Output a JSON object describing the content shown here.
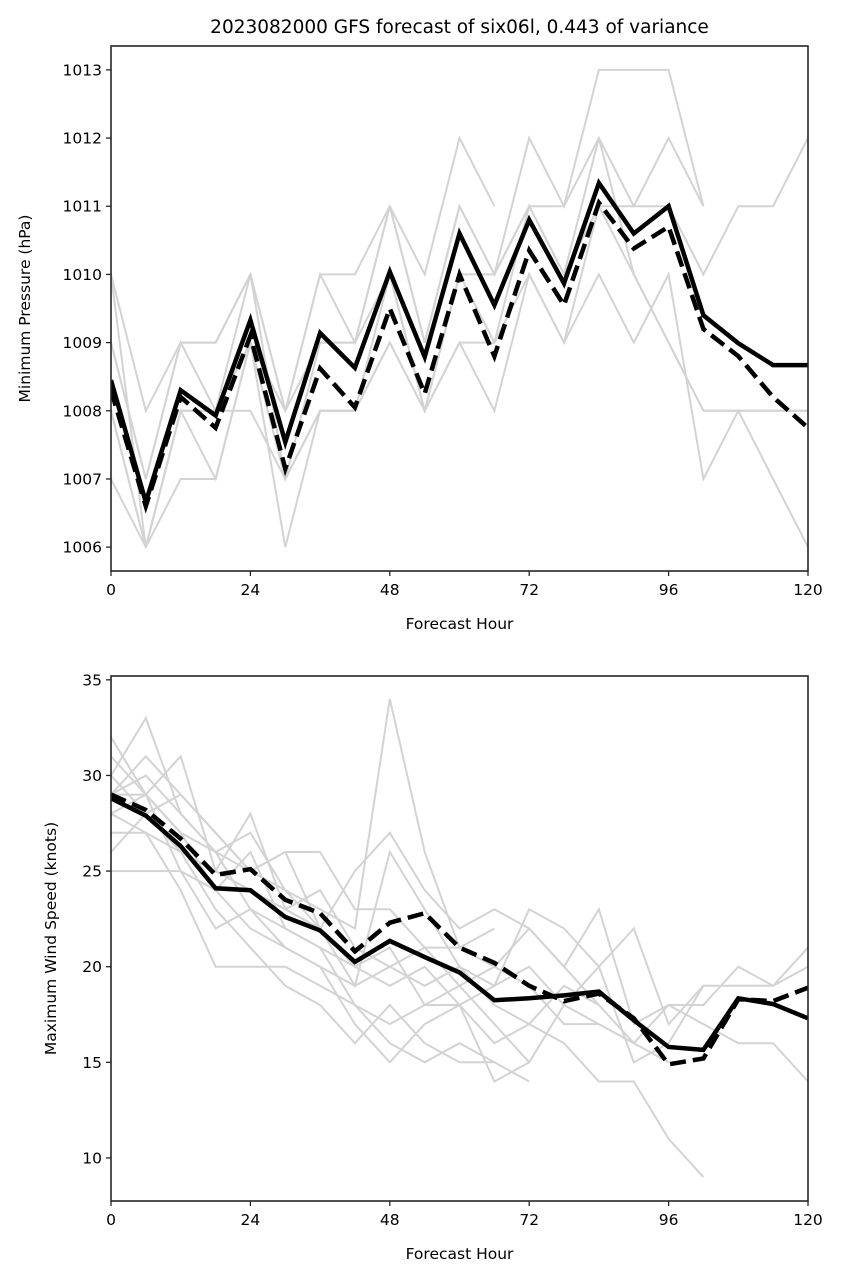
{
  "chart_data": [
    {
      "type": "line",
      "title": "2023082000 GFS forecast of six06l, 0.443 of variance",
      "xlabel": "Forecast Hour",
      "ylabel": "Minimum Pressure (hPa)",
      "xlim": [
        0,
        120
      ],
      "ylim": [
        1005.65,
        1013.35
      ],
      "xticks": [
        0,
        24,
        48,
        72,
        96,
        120
      ],
      "yticks": [
        1006,
        1007,
        1008,
        1009,
        1010,
        1011,
        1012,
        1013
      ],
      "grid": false,
      "legend": null,
      "x": [
        0,
        6,
        12,
        18,
        24,
        30,
        36,
        42,
        48,
        54,
        60,
        66,
        72,
        78,
        84,
        90,
        96,
        102,
        108,
        114,
        120
      ],
      "series": [
        {
          "name": "ensemble-mean",
          "style": "solid",
          "color": "#000000",
          "values": [
            1008.45,
            1006.66,
            1008.3,
            1007.93,
            1009.33,
            1007.54,
            1009.14,
            1008.63,
            1010.04,
            1008.79,
            1010.6,
            1009.55,
            1010.8,
            1009.87,
            1011.34,
            1010.6,
            1011.0,
            1009.4,
            1008.99,
            1008.67,
            1008.67
          ]
        },
        {
          "name": "deterministic",
          "style": "dashed",
          "color": "#000000",
          "values": [
            1008.3,
            1006.6,
            1008.2,
            1007.75,
            1009.1,
            1007.15,
            1008.62,
            1008.05,
            1009.5,
            1008.25,
            1010.0,
            1008.8,
            1010.35,
            1009.55,
            1011.05,
            1010.38,
            1010.7,
            1009.2,
            1008.8,
            1008.2,
            1007.75
          ]
        }
      ],
      "members": [
        [
          1010,
          1008,
          1009,
          1009,
          1010,
          1008,
          1010,
          1010,
          1011,
          1010,
          1012,
          1011,
          null,
          null,
          null,
          null,
          null,
          null,
          null,
          null,
          null
        ],
        [
          1009,
          1007,
          1009,
          1008,
          1010,
          1007,
          1009,
          1009,
          1011,
          1009,
          1011,
          1010,
          1012,
          1011,
          1013,
          1013,
          1013,
          1011,
          null,
          null,
          null
        ],
        [
          1008,
          1006,
          1008,
          1008,
          1009,
          1008,
          1009,
          1009,
          1010,
          1008,
          1010,
          1010,
          1011,
          1011,
          1012,
          1011,
          1012,
          1011,
          null,
          null,
          null
        ],
        [
          1008,
          1006,
          1008,
          1007,
          1009,
          1006,
          1008,
          1008,
          1010,
          1008,
          1009,
          1009,
          1011,
          1010,
          1011,
          1011,
          1011,
          1010,
          1011,
          1011,
          1012
        ],
        [
          1007,
          1006,
          1007,
          1007,
          1009,
          1007,
          1008,
          1008,
          1009,
          1008,
          1009,
          1008,
          1010,
          1009,
          1010,
          1009,
          1010,
          1007,
          1008,
          1007,
          1006
        ],
        [
          1010,
          1006,
          1008,
          1008,
          1008,
          1007,
          1008,
          1008,
          1009,
          1008,
          1010,
          1009,
          1010,
          1009,
          1011,
          1010,
          1009,
          1008,
          1008,
          1008,
          1008
        ],
        [
          1009,
          1007,
          1009,
          1009,
          1010,
          1008,
          1010,
          1009,
          1011,
          1009,
          1011,
          1010,
          1011,
          1010,
          1012,
          1010,
          1009,
          1008,
          1008,
          1008,
          1008
        ]
      ]
    },
    {
      "type": "line",
      "title": "",
      "xlabel": "Forecast Hour",
      "ylabel": "Maximum Wind Speed (knots)",
      "xlim": [
        0,
        120
      ],
      "ylim": [
        7.75,
        35.2
      ],
      "xticks": [
        0,
        24,
        48,
        72,
        96,
        120
      ],
      "yticks": [
        10,
        15,
        20,
        25,
        30,
        35
      ],
      "grid": false,
      "legend": null,
      "x": [
        0,
        6,
        12,
        18,
        24,
        30,
        36,
        42,
        48,
        54,
        60,
        66,
        72,
        78,
        84,
        90,
        96,
        102,
        108,
        114,
        120
      ],
      "series": [
        {
          "name": "ensemble-mean",
          "style": "solid",
          "color": "#000000",
          "values": [
            28.8,
            27.9,
            26.3,
            24.1,
            24.0,
            22.6,
            21.9,
            20.25,
            21.35,
            20.5,
            19.7,
            18.25,
            18.35,
            18.5,
            18.7,
            17.2,
            15.8,
            15.65,
            18.35,
            18.05,
            17.3
          ]
        },
        {
          "name": "deterministic",
          "style": "dashed",
          "color": "#000000",
          "values": [
            29.0,
            28.2,
            26.7,
            24.8,
            25.1,
            23.5,
            22.8,
            20.8,
            22.3,
            22.8,
            21.0,
            20.2,
            19.0,
            18.2,
            18.6,
            17.3,
            14.9,
            15.2,
            18.3,
            18.2,
            18.9
          ]
        }
      ],
      "members": [
        [
          30,
          33,
          28,
          26,
          27,
          24,
          23,
          22,
          34,
          26,
          21,
          22,
          null,
          null,
          null,
          null,
          null,
          null,
          null,
          null,
          null
        ],
        [
          29,
          31,
          29,
          27,
          25,
          24,
          22,
          25,
          27,
          24,
          22,
          23,
          22,
          20,
          23,
          17,
          18,
          18,
          20,
          19,
          21
        ],
        [
          28,
          29,
          31,
          25,
          28,
          23,
          22,
          19,
          26,
          23,
          20,
          19,
          23,
          22,
          20,
          22,
          17,
          19,
          19,
          19,
          20
        ],
        [
          31,
          29,
          27,
          26,
          25,
          26,
          26,
          23,
          23,
          21,
          21,
          20,
          22,
          20,
          18,
          16,
          18,
          17,
          16,
          16,
          14
        ],
        [
          26,
          28,
          29,
          27,
          25,
          26,
          22,
          20,
          19,
          20,
          18,
          19,
          20,
          18,
          20,
          15,
          16,
          19,
          null,
          null,
          null
        ],
        [
          27,
          27,
          26,
          25,
          24,
          23,
          24,
          21,
          20,
          21,
          19,
          20,
          19,
          17,
          17,
          null,
          null,
          null,
          null,
          null,
          null
        ],
        [
          32,
          29,
          27,
          24,
          26,
          22,
          21,
          18,
          17,
          18,
          19,
          17,
          15,
          18,
          17,
          16,
          15,
          null,
          null,
          null,
          null
        ],
        [
          29,
          30,
          28,
          26,
          23,
          22,
          21,
          20,
          21,
          18,
          18,
          16,
          17,
          16,
          14,
          14,
          11,
          9,
          null,
          null,
          null
        ],
        [
          25,
          25,
          25,
          24,
          22,
          21,
          20,
          17,
          15,
          17,
          18,
          14,
          15,
          null,
          null,
          null,
          null,
          null,
          null,
          null,
          null
        ],
        [
          28,
          27,
          24,
          20,
          20,
          20,
          19,
          18,
          16,
          15,
          16,
          15,
          null,
          null,
          null,
          null,
          null,
          null,
          null,
          null,
          null
        ],
        [
          30,
          28,
          26,
          23,
          21,
          19,
          18,
          16,
          18,
          16,
          15,
          15,
          14,
          null,
          null,
          null,
          null,
          null,
          null,
          null,
          null
        ],
        [
          29,
          29,
          25,
          22,
          23,
          21,
          20,
          19,
          20,
          19,
          20,
          18,
          17,
          19,
          18,
          null,
          null,
          null,
          null,
          null,
          null
        ]
      ]
    }
  ]
}
